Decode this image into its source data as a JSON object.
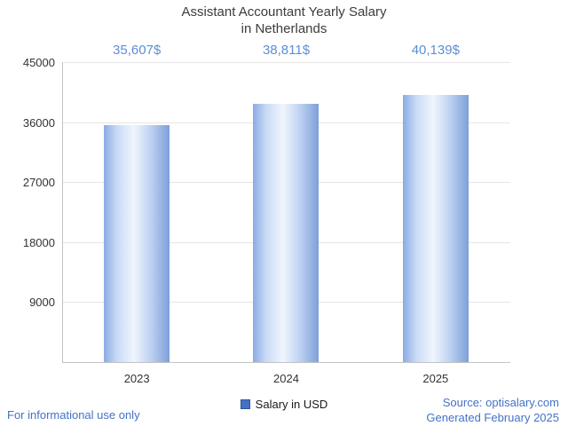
{
  "title": {
    "line1": "Assistant Accountant Yearly Salary",
    "line2": "in Netherlands"
  },
  "legend": {
    "label": "Salary in USD",
    "marker_color": "#4472c4"
  },
  "footer": {
    "left": "For informational use only",
    "source": "Source: optisalary.com",
    "generated": "Generated February 2025"
  },
  "colors": {
    "value_label": "#5b8fd4",
    "bar_edge": "#7d9fd9",
    "bar_center": "#f0f5fd",
    "grid": "#e6e6e6",
    "axis": "#c3c3c3"
  },
  "chart_data": {
    "type": "bar",
    "title": "Assistant Accountant Yearly Salary in Netherlands",
    "categories": [
      "2023",
      "2024",
      "2025"
    ],
    "values": [
      35607,
      38811,
      40139
    ],
    "value_labels": [
      "35,607$",
      "38,811$",
      "40,139$"
    ],
    "series": [
      {
        "name": "Salary in USD",
        "values": [
          35607,
          38811,
          40139
        ]
      }
    ],
    "xlabel": "",
    "ylabel": "",
    "ylim": [
      0,
      45000
    ],
    "yticks": [
      9000,
      18000,
      27000,
      36000,
      45000
    ],
    "grid": true,
    "legend_position": "bottom"
  }
}
